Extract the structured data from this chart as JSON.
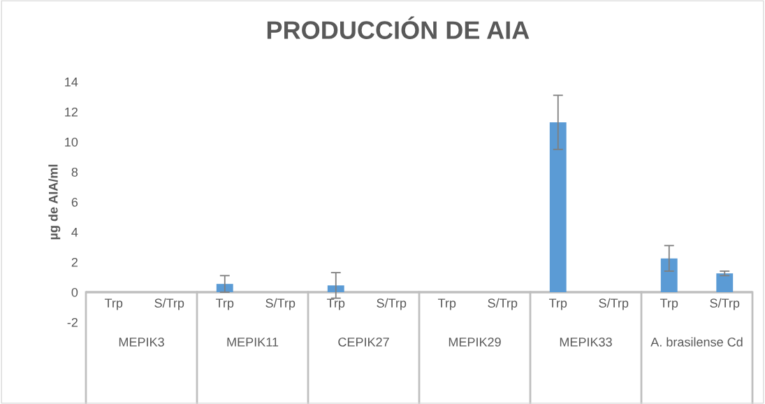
{
  "chart_data": {
    "type": "bar",
    "title": "PRODUCCIÓN DE AIA",
    "ylabel": "µg de AIA/ml",
    "categories": [
      "Trp",
      "S/Trp",
      "Trp",
      "S/Trp",
      "Trp",
      "S/Trp",
      "Trp",
      "S/Trp",
      "Trp",
      "S/Trp",
      "Trp",
      "S/Trp"
    ],
    "annotations": [
      "MEPIK3",
      "MEPIK11",
      "CEPIK27",
      "MEPIK29",
      "MEPIK33",
      "A. brasilense Cd"
    ],
    "values": [
      0,
      0,
      0.55,
      0,
      0.45,
      0,
      0,
      0,
      11.3,
      0,
      2.25,
      1.25
    ],
    "errors": [
      null,
      null,
      0.55,
      null,
      0.85,
      null,
      null,
      null,
      1.8,
      null,
      0.85,
      0.15
    ],
    "color": "#5b9bd5",
    "ylim": [
      -2,
      14
    ],
    "yticks": [
      -2,
      0,
      2,
      4,
      6,
      8,
      10,
      12,
      14
    ],
    "grid": false,
    "legend": false
  }
}
